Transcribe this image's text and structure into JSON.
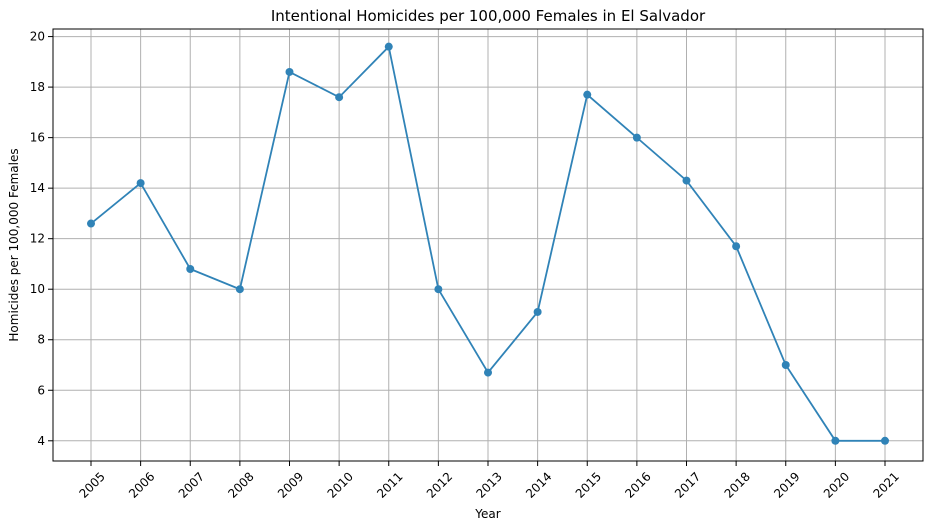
{
  "chart_data": {
    "type": "line",
    "title": "Intentional Homicides per 100,000 Females in El Salvador",
    "xlabel": "Year",
    "ylabel": "Homicides per 100,000 Females",
    "x": [
      "2005",
      "2006",
      "2007",
      "2008",
      "2009",
      "2010",
      "2011",
      "2012",
      "2013",
      "2014",
      "2015",
      "2016",
      "2017",
      "2018",
      "2019",
      "2020",
      "2021"
    ],
    "series": [
      {
        "values": [
          12.6,
          14.2,
          10.8,
          10.0,
          18.6,
          17.6,
          19.6,
          10.0,
          6.7,
          9.1,
          17.7,
          16.0,
          14.3,
          11.7,
          7.0,
          4.0,
          4.0
        ],
        "color": "#3083b7",
        "marker": "circle"
      }
    ],
    "yticks": [
      4,
      6,
      8,
      10,
      12,
      14,
      16,
      18,
      20
    ],
    "ylim": [
      3.2,
      20.3
    ],
    "grid": true,
    "xtick_rotation": 45
  }
}
